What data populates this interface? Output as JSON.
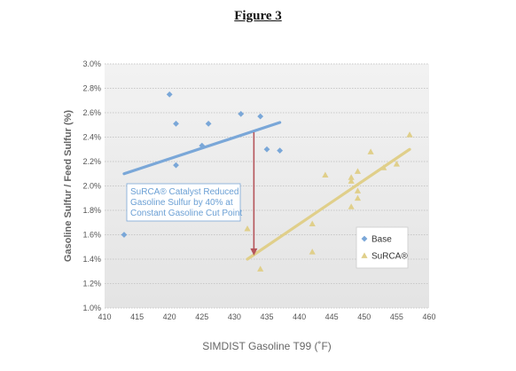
{
  "figure_title": "Figure 3",
  "colors": {
    "base": "#7aa7d8",
    "surca": "#e0cf8a",
    "arrow": "#b5545a",
    "plot_bg": "#ededed",
    "grid": "#c8c8c8"
  },
  "chart_data": {
    "type": "scatter",
    "xlabel": "SIMDIST Gasoline T99 (˚F)",
    "ylabel": "Gasoline Sulfur / Feed Sulfur (%)",
    "xlim": [
      410,
      460
    ],
    "ylim": [
      1.0,
      3.0
    ],
    "x_ticks": [
      "410",
      "415",
      "420",
      "425",
      "430",
      "435",
      "440",
      "445",
      "450",
      "455",
      "460"
    ],
    "y_ticks": [
      "1.0%",
      "1.2%",
      "1.4%",
      "1.6%",
      "1.8%",
      "2.0%",
      "2.2%",
      "2.4%",
      "2.6%",
      "2.8%",
      "3.0%"
    ],
    "grid": "horizontal",
    "legend_position": "lower-right",
    "series": [
      {
        "name": "Base",
        "marker": "diamond",
        "points": [
          [
            413,
            1.6
          ],
          [
            420,
            2.75
          ],
          [
            421,
            2.51
          ],
          [
            421,
            2.17
          ],
          [
            425,
            2.33
          ],
          [
            426,
            2.51
          ],
          [
            431,
            2.59
          ],
          [
            434,
            2.57
          ],
          [
            435,
            2.3
          ],
          [
            437,
            2.29
          ]
        ],
        "trendline": [
          [
            413,
            2.1
          ],
          [
            437,
            2.52
          ]
        ]
      },
      {
        "name": "SuRCA®",
        "marker": "triangle",
        "points": [
          [
            432,
            1.65
          ],
          [
            434,
            1.32
          ],
          [
            442,
            1.69
          ],
          [
            442,
            1.46
          ],
          [
            444,
            2.09
          ],
          [
            448,
            1.83
          ],
          [
            448,
            2.07
          ],
          [
            448,
            2.04
          ],
          [
            449,
            2.12
          ],
          [
            449,
            1.96
          ],
          [
            449,
            1.9
          ],
          [
            451,
            2.28
          ],
          [
            453,
            2.15
          ],
          [
            455,
            2.18
          ],
          [
            457,
            2.42
          ]
        ],
        "trendline": [
          [
            432,
            1.4
          ],
          [
            457,
            2.3
          ]
        ]
      }
    ],
    "annotation": {
      "lines": [
        "SuRCA® Catalyst Reduced",
        "Gasoline Sulfur by 40% at",
        "Constant Gasoline Cut Point"
      ],
      "arrow_from": [
        433,
        2.44
      ],
      "arrow_to": [
        433,
        1.43
      ]
    }
  }
}
